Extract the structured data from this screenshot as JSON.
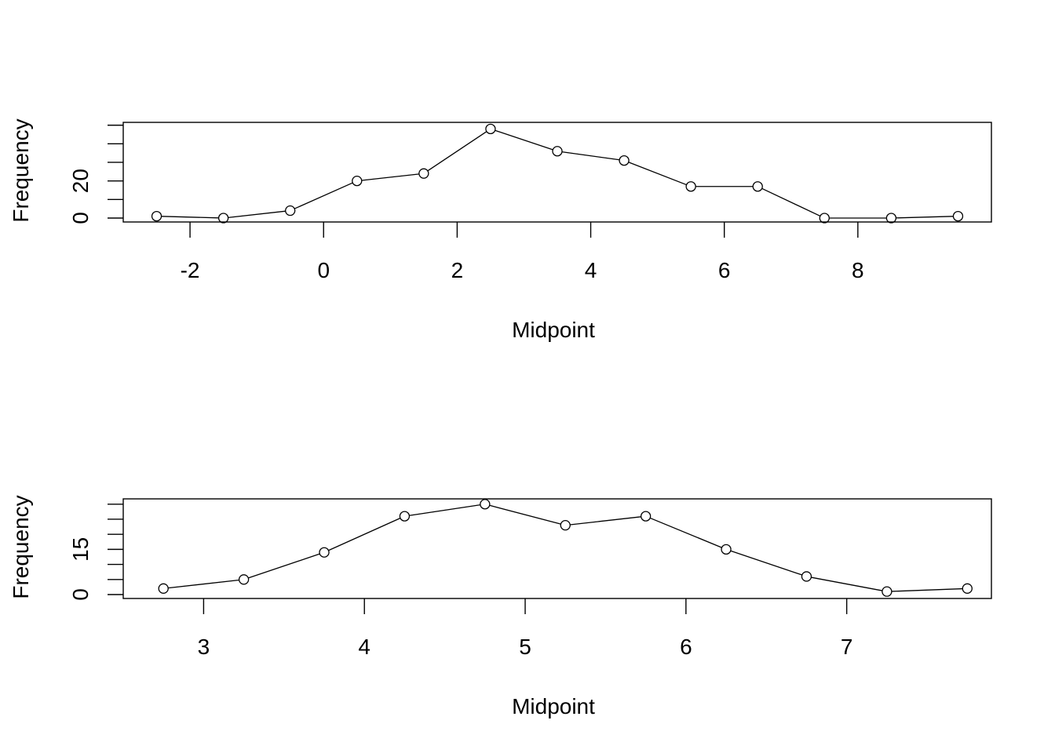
{
  "chart_data": [
    {
      "type": "line",
      "xlabel": "Midpoint",
      "ylabel": "Frequency",
      "x": [
        -2.5,
        -1.5,
        -0.5,
        0.5,
        1.5,
        2.5,
        3.5,
        4.5,
        5.5,
        6.5,
        7.5,
        8.5,
        9.5
      ],
      "values": [
        1,
        0,
        4,
        20,
        24,
        48,
        36,
        31,
        17,
        17,
        0,
        0,
        1
      ],
      "xlim": [
        -3,
        10
      ],
      "ylim": [
        0,
        49
      ],
      "x_ticks": [
        -2,
        0,
        2,
        4,
        6,
        8
      ],
      "y_ticks": [
        0,
        20
      ],
      "y_minor_ticks": [
        10,
        30,
        40,
        50
      ],
      "markers": "open-circle",
      "grid": false,
      "legend": "none"
    },
    {
      "type": "line",
      "xlabel": "Midpoint",
      "ylabel": "Frequency",
      "x": [
        2.75,
        3.25,
        3.75,
        4.25,
        4.75,
        5.25,
        5.75,
        6.25,
        6.75,
        7.25,
        7.75
      ],
      "values": [
        2,
        5,
        14,
        26,
        30,
        23,
        26,
        15,
        6,
        1,
        2
      ],
      "xlim": [
        2.5,
        7.9
      ],
      "ylim": [
        0,
        30.2
      ],
      "x_ticks": [
        3,
        4,
        5,
        6,
        7
      ],
      "y_ticks": [
        0,
        15
      ],
      "y_minor_ticks": [
        5,
        10,
        20,
        25,
        30
      ],
      "markers": "open-circle",
      "grid": false,
      "legend": "none"
    }
  ]
}
